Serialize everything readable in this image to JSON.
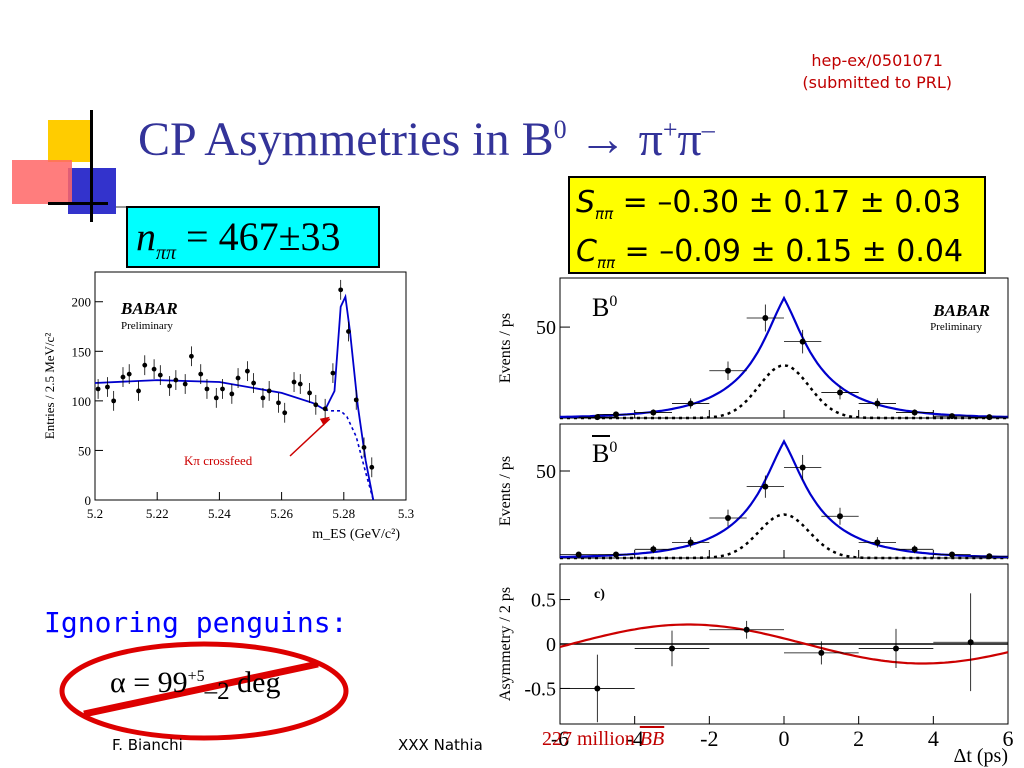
{
  "reference": {
    "line1": "hep-ex/0501071",
    "line2": "(submitted to PRL)"
  },
  "title": {
    "prefix": "CP Asymmetries in B",
    "sup0": "0",
    "arrow": " → ",
    "pi1": "π",
    "sup1": "+",
    "pi2": "π",
    "sup2": "–"
  },
  "npipi": {
    "var": "n",
    "sub": "ππ",
    "text": " = 467±33"
  },
  "sc_box": {
    "s_var": "S",
    "s_sub": "ππ",
    "s_text": " = –0.30 ± 0.17 ± 0.03",
    "c_var": "C",
    "c_sub": "ππ",
    "c_text": " = –0.09 ± 0.15 ± 0.04"
  },
  "penguins": "Ignoring penguins:",
  "alpha": {
    "text": "α = 99",
    "sup": "+5",
    "sub": "–2",
    "unit": " deg"
  },
  "footer": {
    "left": "F. Bianchi",
    "center": "XXX Nathia"
  },
  "bb_note": {
    "text": "227 million ",
    "bb": "BB"
  },
  "colors": {
    "title": "#333399",
    "cyan_box": "#00ffff",
    "yellow_box": "#ffff00",
    "fit_blue": "#0000cc",
    "red": "#cc0000",
    "penguins_blue": "#0000ff"
  },
  "chart_data": [
    {
      "type": "scatter",
      "title": "",
      "xlabel": "m_ES (GeV/c²)",
      "ylabel": "Entries / 2.5 MeV/c²",
      "xlim": [
        5.2,
        5.3
      ],
      "ylim": [
        0,
        230
      ],
      "xticks": [
        "5.2",
        "5.22",
        "5.24",
        "5.26",
        "5.28",
        "5.3"
      ],
      "yticks": [
        "0",
        "50",
        "100",
        "150",
        "200"
      ],
      "logo": "BABAR",
      "logo_sub": "Preliminary",
      "annotation": "Kπ crossfeed",
      "points": [
        {
          "x": 5.201,
          "y": 112
        },
        {
          "x": 5.204,
          "y": 114
        },
        {
          "x": 5.206,
          "y": 100
        },
        {
          "x": 5.209,
          "y": 124
        },
        {
          "x": 5.211,
          "y": 127
        },
        {
          "x": 5.214,
          "y": 110
        },
        {
          "x": 5.216,
          "y": 136
        },
        {
          "x": 5.219,
          "y": 132
        },
        {
          "x": 5.221,
          "y": 126
        },
        {
          "x": 5.224,
          "y": 115
        },
        {
          "x": 5.226,
          "y": 121
        },
        {
          "x": 5.229,
          "y": 117
        },
        {
          "x": 5.231,
          "y": 145
        },
        {
          "x": 5.234,
          "y": 127
        },
        {
          "x": 5.236,
          "y": 112
        },
        {
          "x": 5.239,
          "y": 103
        },
        {
          "x": 5.241,
          "y": 112
        },
        {
          "x": 5.244,
          "y": 107
        },
        {
          "x": 5.246,
          "y": 123
        },
        {
          "x": 5.249,
          "y": 130
        },
        {
          "x": 5.251,
          "y": 118
        },
        {
          "x": 5.254,
          "y": 103
        },
        {
          "x": 5.256,
          "y": 110
        },
        {
          "x": 5.259,
          "y": 98
        },
        {
          "x": 5.261,
          "y": 88
        },
        {
          "x": 5.264,
          "y": 119
        },
        {
          "x": 5.266,
          "y": 117
        },
        {
          "x": 5.269,
          "y": 108
        },
        {
          "x": 5.271,
          "y": 96
        },
        {
          "x": 5.274,
          "y": 92
        },
        {
          "x": 5.2765,
          "y": 128
        },
        {
          "x": 5.279,
          "y": 212
        },
        {
          "x": 5.2815,
          "y": 170
        },
        {
          "x": 5.284,
          "y": 101
        },
        {
          "x": 5.2865,
          "y": 53
        },
        {
          "x": 5.289,
          "y": 33
        }
      ],
      "fit_total": [
        [
          5.2,
          118
        ],
        [
          5.22,
          121
        ],
        [
          5.24,
          119
        ],
        [
          5.26,
          108
        ],
        [
          5.27,
          98
        ],
        [
          5.274,
          91
        ],
        [
          5.277,
          110
        ],
        [
          5.279,
          195
        ],
        [
          5.2805,
          205
        ],
        [
          5.282,
          170
        ],
        [
          5.2845,
          95
        ],
        [
          5.287,
          40
        ],
        [
          5.2895,
          0
        ]
      ],
      "fit_crossfeed": [
        [
          5.274,
          91
        ],
        [
          5.276,
          90
        ],
        [
          5.279,
          90
        ],
        [
          5.281,
          84
        ],
        [
          5.284,
          64
        ],
        [
          5.287,
          28
        ],
        [
          5.2895,
          0
        ]
      ]
    },
    {
      "type": "scatter",
      "title": "",
      "xlabel": "",
      "ylabel": "Events / ps",
      "xlim": [
        -6,
        6
      ],
      "ylim": [
        0,
        77
      ],
      "yticks": [
        "50"
      ],
      "label": "B0",
      "logo": "BABAR",
      "logo_sub": "Preliminary",
      "points": [
        {
          "x": -5,
          "y": 0.5
        },
        {
          "x": -4.5,
          "y": 2
        },
        {
          "x": -3.5,
          "y": 3
        },
        {
          "x": -2.5,
          "y": 8
        },
        {
          "x": -1.5,
          "y": 26
        },
        {
          "x": -0.5,
          "y": 55
        },
        {
          "x": 0.5,
          "y": 42
        },
        {
          "x": 1.5,
          "y": 14
        },
        {
          "x": 2.5,
          "y": 8
        },
        {
          "x": 3.5,
          "y": 3
        },
        {
          "x": 4.5,
          "y": 1
        },
        {
          "x": 5.5,
          "y": 0.5
        }
      ],
      "fit_total_peak": 66,
      "fit_signal_peak": 29
    },
    {
      "type": "scatter",
      "title": "",
      "xlabel": "",
      "ylabel": "Events / ps",
      "xlim": [
        -6,
        6
      ],
      "ylim": [
        0,
        77
      ],
      "yticks": [
        "50"
      ],
      "label": "B0bar",
      "points": [
        {
          "x": -5.5,
          "y": 2
        },
        {
          "x": -4.5,
          "y": 2
        },
        {
          "x": -3.5,
          "y": 5
        },
        {
          "x": -2.5,
          "y": 9
        },
        {
          "x": -1.5,
          "y": 23
        },
        {
          "x": -0.5,
          "y": 41
        },
        {
          "x": 0.5,
          "y": 52
        },
        {
          "x": 1.5,
          "y": 24
        },
        {
          "x": 2.5,
          "y": 9
        },
        {
          "x": 3.5,
          "y": 5
        },
        {
          "x": 4.5,
          "y": 2
        },
        {
          "x": 5.5,
          "y": 1
        }
      ],
      "fit_total_peak": 67,
      "fit_signal_peak": 25
    },
    {
      "type": "scatter",
      "title": "",
      "xlabel": "Δt (ps)",
      "ylabel": "Asymmetry / 2 ps",
      "xlim": [
        -6,
        6
      ],
      "ylim": [
        -0.9,
        0.9
      ],
      "xticks": [
        "-6",
        "-4",
        "-2",
        "0",
        "2",
        "4",
        "6"
      ],
      "yticks": [
        "0.5",
        "0",
        "-0.5"
      ],
      "label": "c)",
      "points": [
        {
          "x": -5,
          "y": -0.5,
          "xerr": 1,
          "yerr": 0.38
        },
        {
          "x": -3,
          "y": -0.05,
          "xerr": 1,
          "yerr": 0.2
        },
        {
          "x": -1,
          "y": 0.16,
          "xerr": 1,
          "yerr": 0.1
        },
        {
          "x": 1,
          "y": -0.1,
          "xerr": 1,
          "yerr": 0.13
        },
        {
          "x": 3,
          "y": -0.05,
          "xerr": 1,
          "yerr": 0.22
        },
        {
          "x": 5,
          "y": 0.02,
          "xerr": 1,
          "yerr": 0.55
        }
      ],
      "fit_curve": {
        "S": -0.3,
        "C": -0.09
      }
    }
  ]
}
